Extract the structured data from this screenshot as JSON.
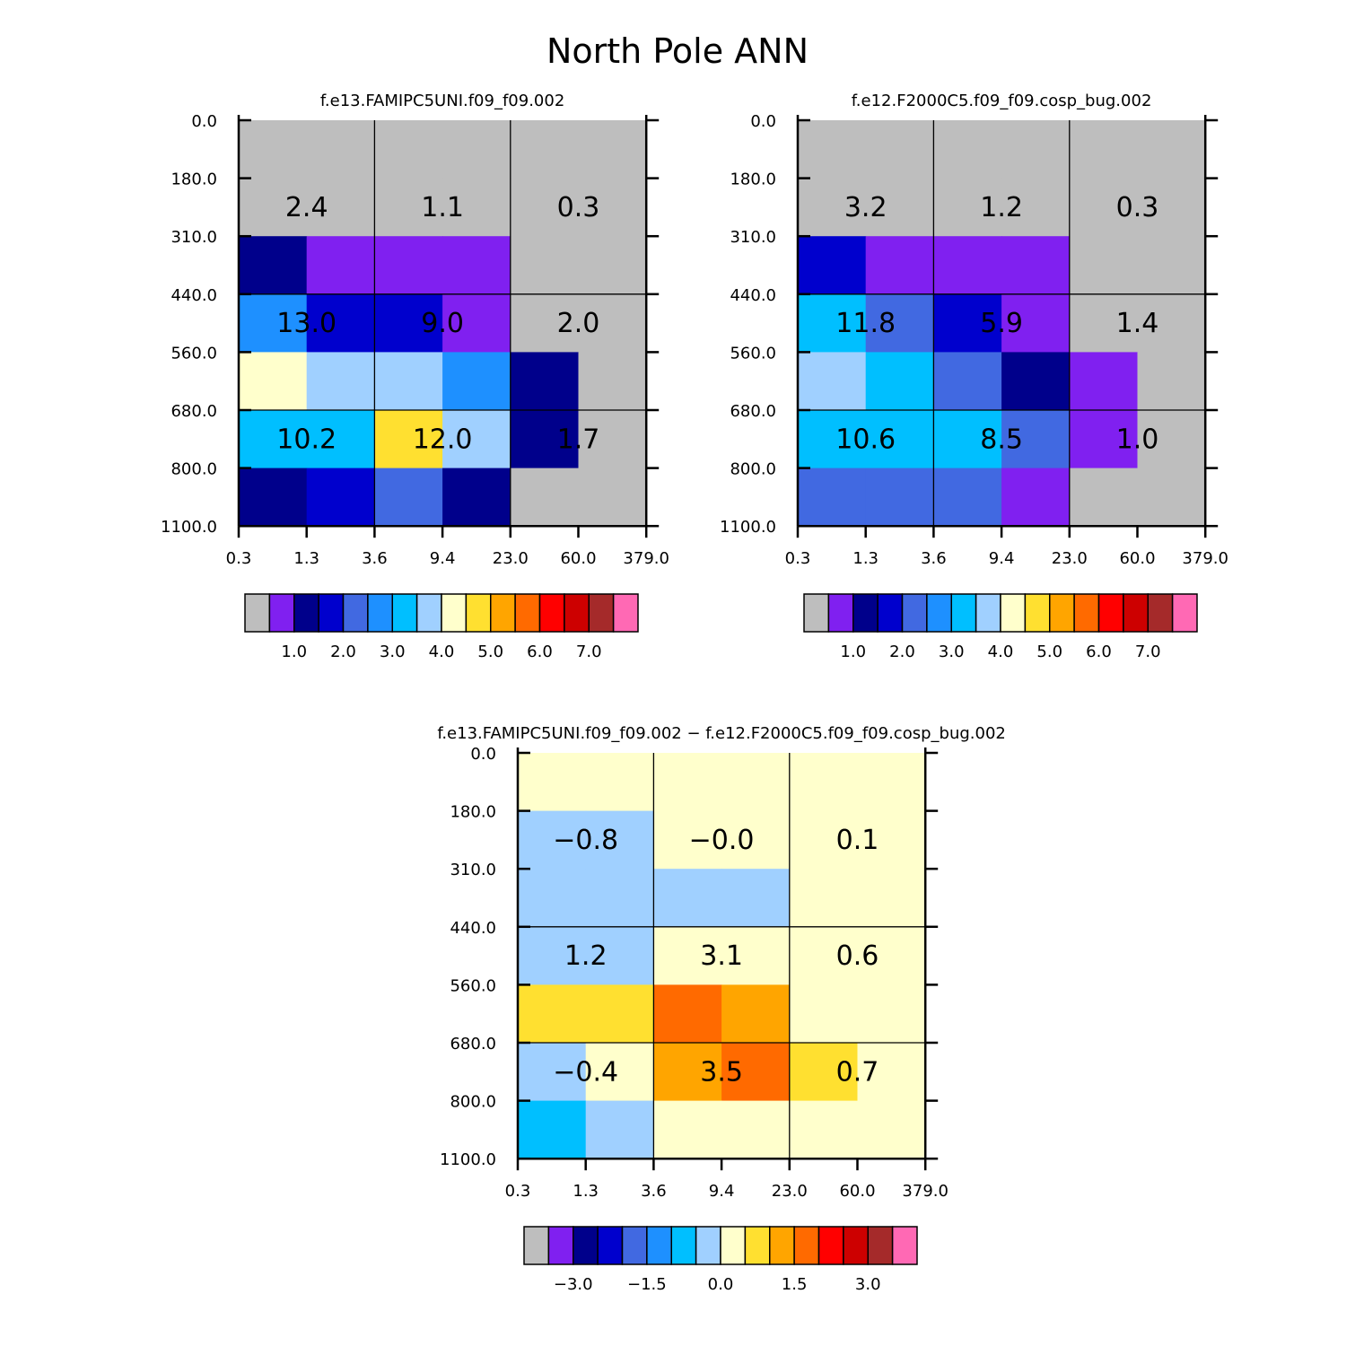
{
  "title": "North Pole ANN",
  "chart_data": [
    {
      "type": "heatmap",
      "title": "f.e13.FAMIPC5UNI.f09_f09.002",
      "xlabel": "",
      "ylabel": "",
      "x_ticks": [
        "0.3",
        "1.3",
        "3.6",
        "9.4",
        "23.0",
        "60.0",
        "379.0"
      ],
      "y_ticks": [
        "0.0",
        "180.0",
        "310.0",
        "440.0",
        "560.0",
        "680.0",
        "800.0",
        "1100.0"
      ],
      "cell_colors": [
        [
          "#BEBEBE",
          "#BEBEBE",
          "#BEBEBE",
          "#BEBEBE",
          "#BEBEBE",
          "#BEBEBE"
        ],
        [
          "#BEBEBE",
          "#BEBEBE",
          "#BEBEBE",
          "#BEBEBE",
          "#BEBEBE",
          "#BEBEBE"
        ],
        [
          "#00008B",
          "#8020F0",
          "#8020F0",
          "#8020F0",
          "#BEBEBE",
          "#BEBEBE"
        ],
        [
          "#1E90FF",
          "#0000CD",
          "#0000CD",
          "#8020F0",
          "#BEBEBE",
          "#BEBEBE"
        ],
        [
          "#FFFFCC",
          "#A0D0FF",
          "#A0D0FF",
          "#1E90FF",
          "#00008B",
          "#BEBEBE"
        ],
        [
          "#00BFFF",
          "#00BFFF",
          "#FFE030",
          "#A0D0FF",
          "#00008B",
          "#BEBEBE"
        ],
        [
          "#00008B",
          "#0000CD",
          "#4169E1",
          "#00008B",
          "#BEBEBE",
          "#BEBEBE"
        ]
      ],
      "block_values": [
        [
          "2.4",
          "1.1",
          "0.3"
        ],
        [
          "13.0",
          "9.0",
          "2.0"
        ],
        [
          "10.2",
          "12.0",
          "1.7"
        ]
      ],
      "colorbar": {
        "colors": [
          "#BEBEBE",
          "#8020F0",
          "#00008B",
          "#0000CD",
          "#4169E1",
          "#1E90FF",
          "#00BFFF",
          "#A0D0FF",
          "#FFFFCC",
          "#FFE030",
          "#FFA500",
          "#FF6A00",
          "#FF0000",
          "#CD0000",
          "#A52A2A",
          "#FF69B4"
        ],
        "labels": [
          "1.0",
          "2.0",
          "3.0",
          "4.0",
          "5.0",
          "6.0",
          "7.0"
        ]
      }
    },
    {
      "type": "heatmap",
      "title": "f.e12.F2000C5.f09_f09.cosp_bug.002",
      "xlabel": "",
      "ylabel": "",
      "x_ticks": [
        "0.3",
        "1.3",
        "3.6",
        "9.4",
        "23.0",
        "60.0",
        "379.0"
      ],
      "y_ticks": [
        "0.0",
        "180.0",
        "310.0",
        "440.0",
        "560.0",
        "680.0",
        "800.0",
        "1100.0"
      ],
      "cell_colors": [
        [
          "#BEBEBE",
          "#BEBEBE",
          "#BEBEBE",
          "#BEBEBE",
          "#BEBEBE",
          "#BEBEBE"
        ],
        [
          "#BEBEBE",
          "#BEBEBE",
          "#BEBEBE",
          "#BEBEBE",
          "#BEBEBE",
          "#BEBEBE"
        ],
        [
          "#0000CD",
          "#8020F0",
          "#8020F0",
          "#8020F0",
          "#BEBEBE",
          "#BEBEBE"
        ],
        [
          "#00BFFF",
          "#4169E1",
          "#0000CD",
          "#8020F0",
          "#BEBEBE",
          "#BEBEBE"
        ],
        [
          "#A0D0FF",
          "#00BFFF",
          "#4169E1",
          "#00008B",
          "#8020F0",
          "#BEBEBE"
        ],
        [
          "#00BFFF",
          "#00BFFF",
          "#00BFFF",
          "#4169E1",
          "#8020F0",
          "#BEBEBE"
        ],
        [
          "#4169E1",
          "#4169E1",
          "#4169E1",
          "#8020F0",
          "#BEBEBE",
          "#BEBEBE"
        ]
      ],
      "block_values": [
        [
          "3.2",
          "1.2",
          "0.3"
        ],
        [
          "11.8",
          "5.9",
          "1.4"
        ],
        [
          "10.6",
          "8.5",
          "1.0"
        ]
      ],
      "colorbar": {
        "colors": [
          "#BEBEBE",
          "#8020F0",
          "#00008B",
          "#0000CD",
          "#4169E1",
          "#1E90FF",
          "#00BFFF",
          "#A0D0FF",
          "#FFFFCC",
          "#FFE030",
          "#FFA500",
          "#FF6A00",
          "#FF0000",
          "#CD0000",
          "#A52A2A",
          "#FF69B4"
        ],
        "labels": [
          "1.0",
          "2.0",
          "3.0",
          "4.0",
          "5.0",
          "6.0",
          "7.0"
        ]
      }
    },
    {
      "type": "heatmap",
      "title": "f.e13.FAMIPC5UNI.f09_f09.002 − f.e12.F2000C5.f09_f09.cosp_bug.002",
      "xlabel": "",
      "ylabel": "",
      "x_ticks": [
        "0.3",
        "1.3",
        "3.6",
        "9.4",
        "23.0",
        "60.0",
        "379.0"
      ],
      "y_ticks": [
        "0.0",
        "180.0",
        "310.0",
        "440.0",
        "560.0",
        "680.0",
        "800.0",
        "1100.0"
      ],
      "cell_colors": [
        [
          "#FFFFCC",
          "#FFFFCC",
          "#FFFFCC",
          "#FFFFCC",
          "#FFFFCC",
          "#FFFFCC"
        ],
        [
          "#A0D0FF",
          "#A0D0FF",
          "#FFFFCC",
          "#FFFFCC",
          "#FFFFCC",
          "#FFFFCC"
        ],
        [
          "#A0D0FF",
          "#A0D0FF",
          "#A0D0FF",
          "#A0D0FF",
          "#FFFFCC",
          "#FFFFCC"
        ],
        [
          "#A0D0FF",
          "#A0D0FF",
          "#FFFFCC",
          "#FFFFCC",
          "#FFFFCC",
          "#FFFFCC"
        ],
        [
          "#FFE030",
          "#FFE030",
          "#FF6A00",
          "#FFA500",
          "#FFFFCC",
          "#FFFFCC"
        ],
        [
          "#A0D0FF",
          "#FFFFCC",
          "#FFA500",
          "#FF6A00",
          "#FFE030",
          "#FFFFCC"
        ],
        [
          "#00BFFF",
          "#A0D0FF",
          "#FFFFCC",
          "#FFFFCC",
          "#FFFFCC",
          "#FFFFCC"
        ]
      ],
      "block_values": [
        [
          "−0.8",
          "−0.0",
          "0.1"
        ],
        [
          "1.2",
          "3.1",
          "0.6"
        ],
        [
          "−0.4",
          "3.5",
          "0.7"
        ]
      ],
      "colorbar": {
        "colors": [
          "#BEBEBE",
          "#8020F0",
          "#00008B",
          "#0000CD",
          "#4169E1",
          "#1E90FF",
          "#00BFFF",
          "#A0D0FF",
          "#FFFFCC",
          "#FFE030",
          "#FFA500",
          "#FF6A00",
          "#FF0000",
          "#CD0000",
          "#A52A2A",
          "#FF69B4"
        ],
        "labels": [
          "−3.0",
          "−1.5",
          "0.0",
          "1.5",
          "3.0"
        ]
      }
    }
  ]
}
